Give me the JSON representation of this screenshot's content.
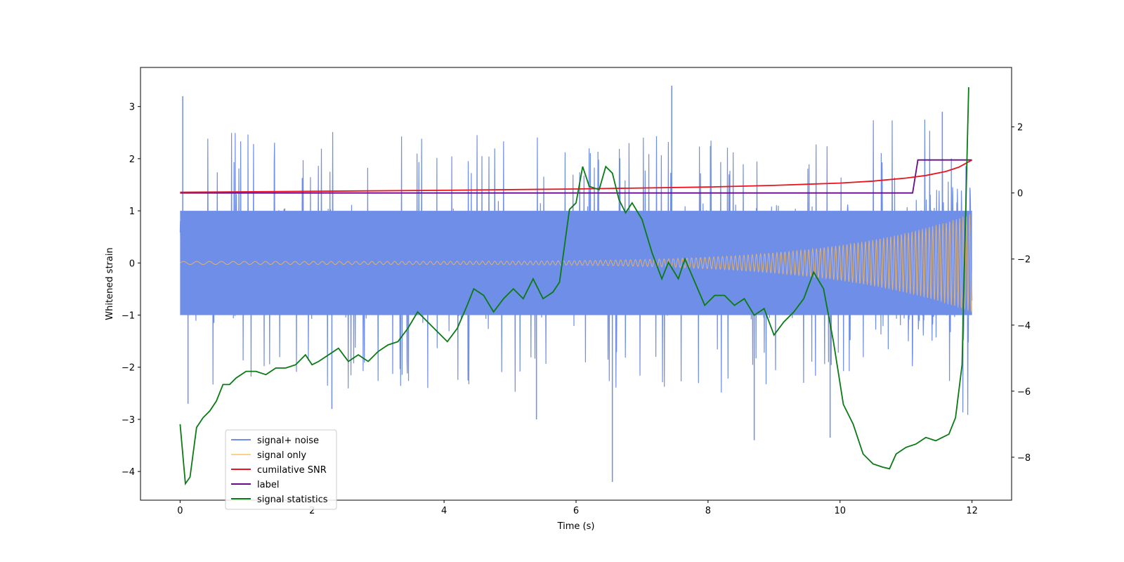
{
  "chart_data": {
    "type": "line",
    "title": "",
    "xlabel": "Time (s)",
    "ylabel": "Whitened strain",
    "ylabel_right": "",
    "xlim": [
      -0.6,
      12.6
    ],
    "ylim": [
      -4.55,
      3.75
    ],
    "ylim_right": [
      -9.3,
      3.8
    ],
    "x_ticks": [
      0,
      2,
      4,
      6,
      8,
      10,
      12
    ],
    "x_tick_labels": [
      "0",
      "2",
      "4",
      "6",
      "8",
      "10",
      "12"
    ],
    "y_ticks": [
      3,
      2,
      1,
      0,
      -1,
      -2,
      -3,
      -4
    ],
    "y_tick_labels": [
      "3",
      "2",
      "1",
      "0",
      "−1",
      "−2",
      "−3",
      "−4"
    ],
    "y_right_ticks": [
      2,
      0,
      -2,
      -4,
      -6,
      -8
    ],
    "y_right_tick_labels": [
      "2",
      "0",
      "−2",
      "−4",
      "−6",
      "−8"
    ],
    "grid": false,
    "legend_position": "lower-left",
    "legend": [
      "signal+ noise",
      "signal only",
      "cumilative SNR",
      "label",
      "signal statistics"
    ],
    "colors": {
      "signal_noise": "#6f8ee8",
      "signal_only": "#ffbd5a",
      "snr": "#e8141e",
      "label": "#6a0a8a",
      "stats": "#0a7a14"
    },
    "series": [
      {
        "name": "signal+ noise",
        "axis": "left",
        "description": "dense noisy strain, roughly +-2 sigma band around 0",
        "t_range": [
          0,
          12
        ],
        "band_lower": -1.0,
        "band_upper": 1.0,
        "envelope_min": -2.5,
        "envelope_max": 2.6,
        "extreme_peaks": [
          {
            "t": 0.04,
            "y": 3.2
          },
          {
            "t": 7.45,
            "y": 3.4
          },
          {
            "t": 6.55,
            "y": -4.2
          },
          {
            "t": 8.7,
            "y": -3.4
          },
          {
            "t": 9.85,
            "y": -3.35
          },
          {
            "t": 0.12,
            "y": -2.7
          },
          {
            "t": 2.3,
            "y": -2.8
          },
          {
            "t": 5.4,
            "y": -3.0
          },
          {
            "t": 11.55,
            "y": 2.9
          }
        ]
      },
      {
        "name": "signal only",
        "axis": "left",
        "description": "chirp with growing amplitude",
        "t_range": [
          0,
          12
        ],
        "amplitude_start": 0.03,
        "amplitude_end": 0.95
      },
      {
        "name": "cumilative SNR",
        "axis": "right",
        "x": [
          0,
          2,
          4,
          6,
          8,
          9,
          10,
          10.5,
          11,
          11.3,
          11.6,
          11.8,
          12
        ],
        "y": [
          0.02,
          0.05,
          0.08,
          0.12,
          0.18,
          0.23,
          0.3,
          0.36,
          0.45,
          0.53,
          0.65,
          0.78,
          1.0
        ]
      },
      {
        "name": "label",
        "axis": "right",
        "x": [
          0,
          11.1,
          11.18,
          12
        ],
        "y": [
          0,
          0,
          1,
          1
        ]
      },
      {
        "name": "signal statistics",
        "axis": "right",
        "x": [
          0,
          0.08,
          0.15,
          0.25,
          0.35,
          0.45,
          0.55,
          0.65,
          0.75,
          0.85,
          1.0,
          1.15,
          1.3,
          1.45,
          1.6,
          1.75,
          1.9,
          2.0,
          2.1,
          2.25,
          2.4,
          2.55,
          2.7,
          2.85,
          3.0,
          3.15,
          3.3,
          3.45,
          3.6,
          3.75,
          3.9,
          4.05,
          4.2,
          4.35,
          4.45,
          4.6,
          4.75,
          4.9,
          5.05,
          5.2,
          5.35,
          5.5,
          5.65,
          5.75,
          5.9,
          6.0,
          6.1,
          6.2,
          6.35,
          6.45,
          6.55,
          6.65,
          6.75,
          6.85,
          7.0,
          7.15,
          7.3,
          7.4,
          7.55,
          7.65,
          7.8,
          7.95,
          8.1,
          8.25,
          8.4,
          8.55,
          8.7,
          8.85,
          9.0,
          9.15,
          9.3,
          9.45,
          9.6,
          9.75,
          9.9,
          10.05,
          10.2,
          10.35,
          10.5,
          10.65,
          10.75,
          10.85,
          11.0,
          11.15,
          11.3,
          11.45,
          11.55,
          11.65,
          11.75,
          11.85,
          11.95
        ],
        "y": [
          -7.0,
          -8.8,
          -8.6,
          -7.1,
          -6.8,
          -6.6,
          -6.3,
          -5.8,
          -5.8,
          -5.6,
          -5.4,
          -5.4,
          -5.5,
          -5.3,
          -5.3,
          -5.2,
          -4.9,
          -5.2,
          -5.1,
          -4.9,
          -4.7,
          -5.1,
          -4.9,
          -5.1,
          -4.8,
          -4.6,
          -4.5,
          -4.1,
          -3.6,
          -3.9,
          -4.2,
          -4.5,
          -4.1,
          -3.4,
          -2.9,
          -3.1,
          -3.6,
          -3.2,
          -2.9,
          -3.2,
          -2.6,
          -3.2,
          -3.0,
          -2.7,
          -0.5,
          -0.3,
          0.8,
          0.2,
          0.1,
          0.8,
          0.6,
          -0.2,
          -0.6,
          -0.3,
          -0.8,
          -1.8,
          -2.6,
          -2.1,
          -2.6,
          -2.0,
          -2.7,
          -3.4,
          -3.1,
          -3.1,
          -3.4,
          -3.2,
          -3.7,
          -3.5,
          -4.3,
          -3.9,
          -3.6,
          -3.2,
          -2.4,
          -2.9,
          -4.5,
          -6.4,
          -7.0,
          -7.9,
          -8.2,
          -8.3,
          -8.35,
          -7.9,
          -7.7,
          -7.6,
          -7.4,
          -7.5,
          -7.4,
          -7.3,
          -6.8,
          -5.2,
          3.2
        ]
      }
    ]
  }
}
